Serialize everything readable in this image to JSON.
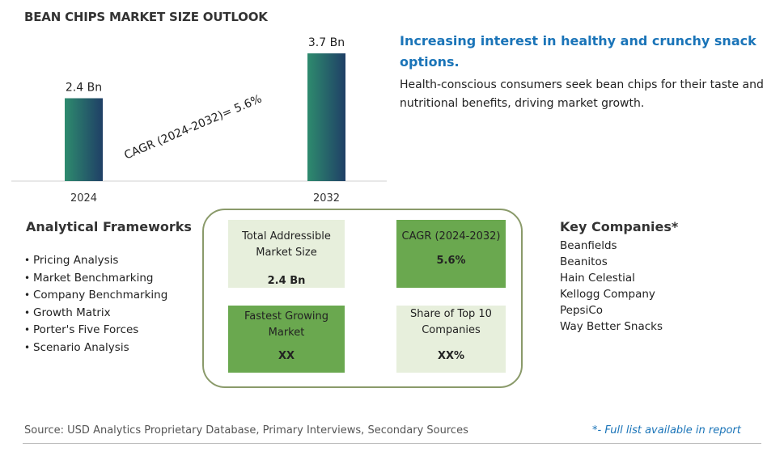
{
  "title": "BEAN CHIPS MARKET SIZE OUTLOOK",
  "chart_data": {
    "type": "bar",
    "categories": [
      "2024",
      "2032"
    ],
    "values": [
      2.4,
      3.7
    ],
    "value_labels": [
      "2.4 Bn",
      "3.7 Bn"
    ],
    "annotation": "CAGR (2024-2032)=  5.6%",
    "bar_gradient": [
      "#2e8b6e",
      "#1f3f66"
    ]
  },
  "headline": "Increasing interest in healthy and crunchy snack options.",
  "description": "Health-conscious consumers seek bean chips for their taste and nutritional benefits, driving market growth.",
  "frameworks": {
    "heading": "Analytical Frameworks",
    "items": [
      "Pricing Analysis",
      "Market Benchmarking",
      "Company Benchmarking",
      "Growth Matrix",
      "Porter's Five Forces",
      "Scenario Analysis"
    ]
  },
  "cards": {
    "tam": {
      "label": "Total Addressible Market Size",
      "value": "2.4 Bn"
    },
    "cagr": {
      "label": "CAGR (2024-2032)",
      "value": "5.6%"
    },
    "fastest": {
      "label": "Fastest Growing Market",
      "value": "XX"
    },
    "share": {
      "label": "Share of Top 10 Companies",
      "value": "XX%"
    }
  },
  "colors": {
    "accent": "#1a74b8",
    "card_light": "#e7efdc",
    "card_dark": "#6aa84f",
    "frame": "#8a9a6a"
  },
  "companies": {
    "heading": "Key Companies*",
    "items": [
      "Beanfields",
      "Beanitos",
      "Hain Celestial",
      "Kellogg Company",
      "PepsiCo",
      "Way Better Snacks"
    ]
  },
  "footer": {
    "source": "Source: USD Analytics Proprietary Database, Primary Interviews, Secondary Sources",
    "note": "*- Full list available in report"
  }
}
